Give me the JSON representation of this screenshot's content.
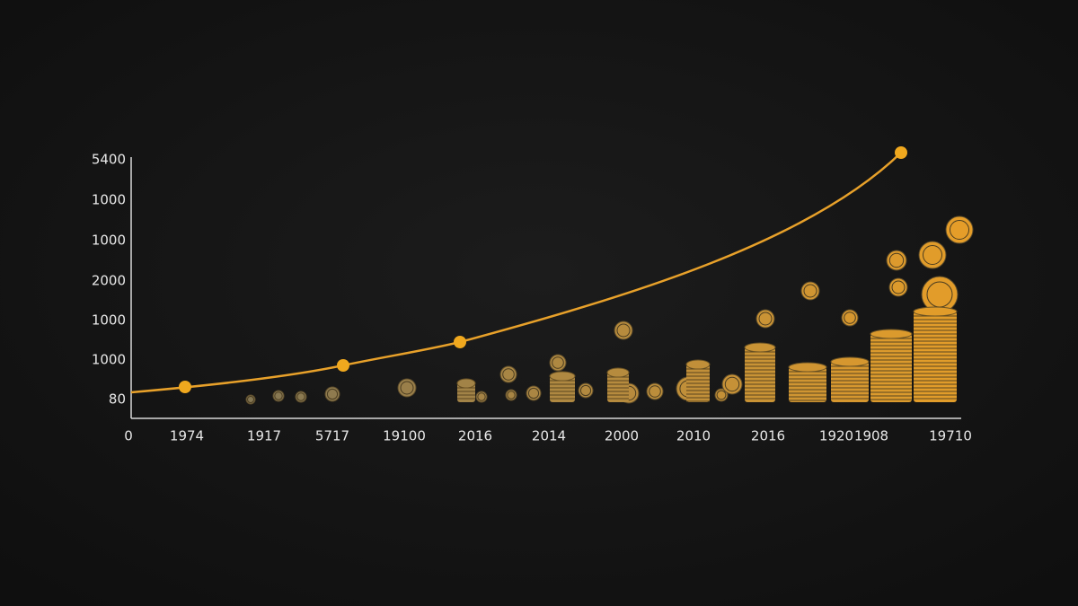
{
  "y_axis_labels": [
    "5400",
    "1000",
    "1000",
    "2000",
    "1000",
    "1000",
    "80"
  ],
  "x_axis_labels": [
    "0",
    "1974",
    "1917",
    "5717",
    "19100",
    "2016",
    "2014",
    "2000",
    "2010",
    "2016",
    "1920",
    "1908",
    "19710"
  ]
}
